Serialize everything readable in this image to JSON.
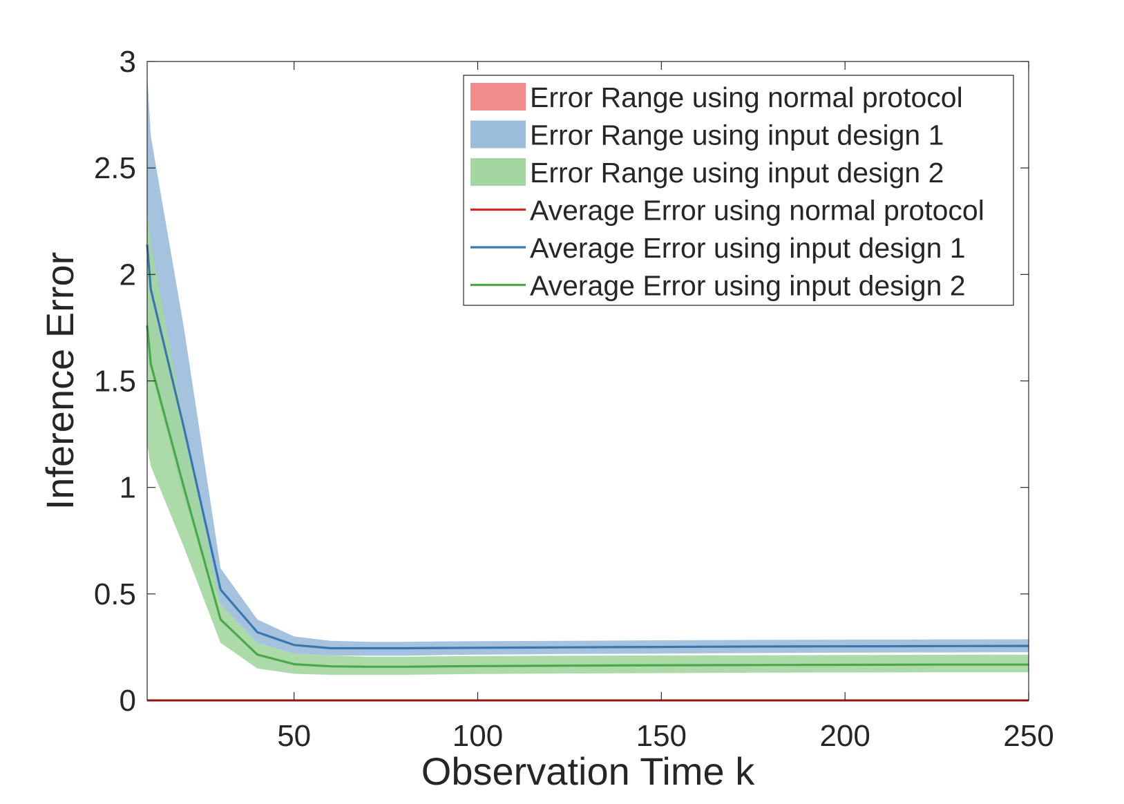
{
  "chart_data": {
    "type": "line",
    "xlabel": "Observation Time k",
    "ylabel": "Inference Error",
    "xlim": [
      10,
      250
    ],
    "ylim": [
      0,
      3
    ],
    "xticks": [
      50,
      100,
      150,
      200,
      250
    ],
    "yticks": [
      0,
      0.5,
      1,
      1.5,
      2,
      2.5,
      3
    ],
    "xtick_labels": [
      "50",
      "100",
      "150",
      "200",
      "250"
    ],
    "ytick_labels": [
      "0",
      "0.5",
      "1",
      "1.5",
      "2",
      "2.5",
      "3"
    ],
    "grid": false,
    "legend_position": "top-right",
    "x": [
      10,
      11,
      20,
      30,
      40,
      50,
      60,
      70,
      80,
      90,
      100,
      125,
      150,
      175,
      200,
      225,
      250
    ],
    "bands": [
      {
        "name": "Error Range using normal protocol",
        "color": "#f08c8c",
        "lower": [
          0,
          0,
          0,
          0,
          0,
          0,
          0,
          0,
          0,
          0,
          0,
          0,
          0,
          0,
          0,
          0,
          0
        ],
        "upper": [
          0.005,
          0.005,
          0.005,
          0.005,
          0.005,
          0.005,
          0.005,
          0.005,
          0.005,
          0.005,
          0.005,
          0.005,
          0.005,
          0.005,
          0.005,
          0.005,
          0.005
        ]
      },
      {
        "name": "Error Range using input design 1",
        "color": "#9bbddb",
        "lower": [
          1.6,
          1.55,
          0.95,
          0.45,
          0.27,
          0.22,
          0.21,
          0.21,
          0.21,
          0.213,
          0.215,
          0.218,
          0.22,
          0.222,
          0.224,
          0.225,
          0.226
        ],
        "upper": [
          2.95,
          2.65,
          1.75,
          0.62,
          0.38,
          0.3,
          0.28,
          0.275,
          0.275,
          0.277,
          0.278,
          0.28,
          0.282,
          0.284,
          0.285,
          0.286,
          0.287
        ]
      },
      {
        "name": "Error Range using input design 2",
        "color": "#a3d6a0",
        "lower": [
          1.2,
          1.1,
          0.72,
          0.27,
          0.15,
          0.125,
          0.12,
          0.12,
          0.12,
          0.122,
          0.124,
          0.126,
          0.128,
          0.13,
          0.131,
          0.132,
          0.132
        ],
        "upper": [
          2.3,
          2.15,
          1.3,
          0.45,
          0.27,
          0.22,
          0.21,
          0.205,
          0.205,
          0.207,
          0.208,
          0.21,
          0.211,
          0.212,
          0.213,
          0.214,
          0.215
        ]
      }
    ],
    "series": [
      {
        "name": "Average Error using normal protocol",
        "color": "#d62728",
        "values": [
          0,
          0,
          0,
          0,
          0,
          0,
          0,
          0,
          0,
          0,
          0,
          0,
          0,
          0,
          0,
          0,
          0
        ]
      },
      {
        "name": "Average Error using input design 1",
        "color": "#3a75b0",
        "values": [
          2.14,
          1.93,
          1.28,
          0.52,
          0.32,
          0.26,
          0.245,
          0.245,
          0.245,
          0.246,
          0.247,
          0.249,
          0.251,
          0.253,
          0.254,
          0.255,
          0.256
        ]
      },
      {
        "name": "Average Error using input design 2",
        "color": "#4aa84a",
        "values": [
          1.76,
          1.58,
          1.0,
          0.38,
          0.215,
          0.17,
          0.16,
          0.158,
          0.158,
          0.16,
          0.161,
          0.163,
          0.165,
          0.166,
          0.167,
          0.168,
          0.168
        ]
      }
    ]
  }
}
